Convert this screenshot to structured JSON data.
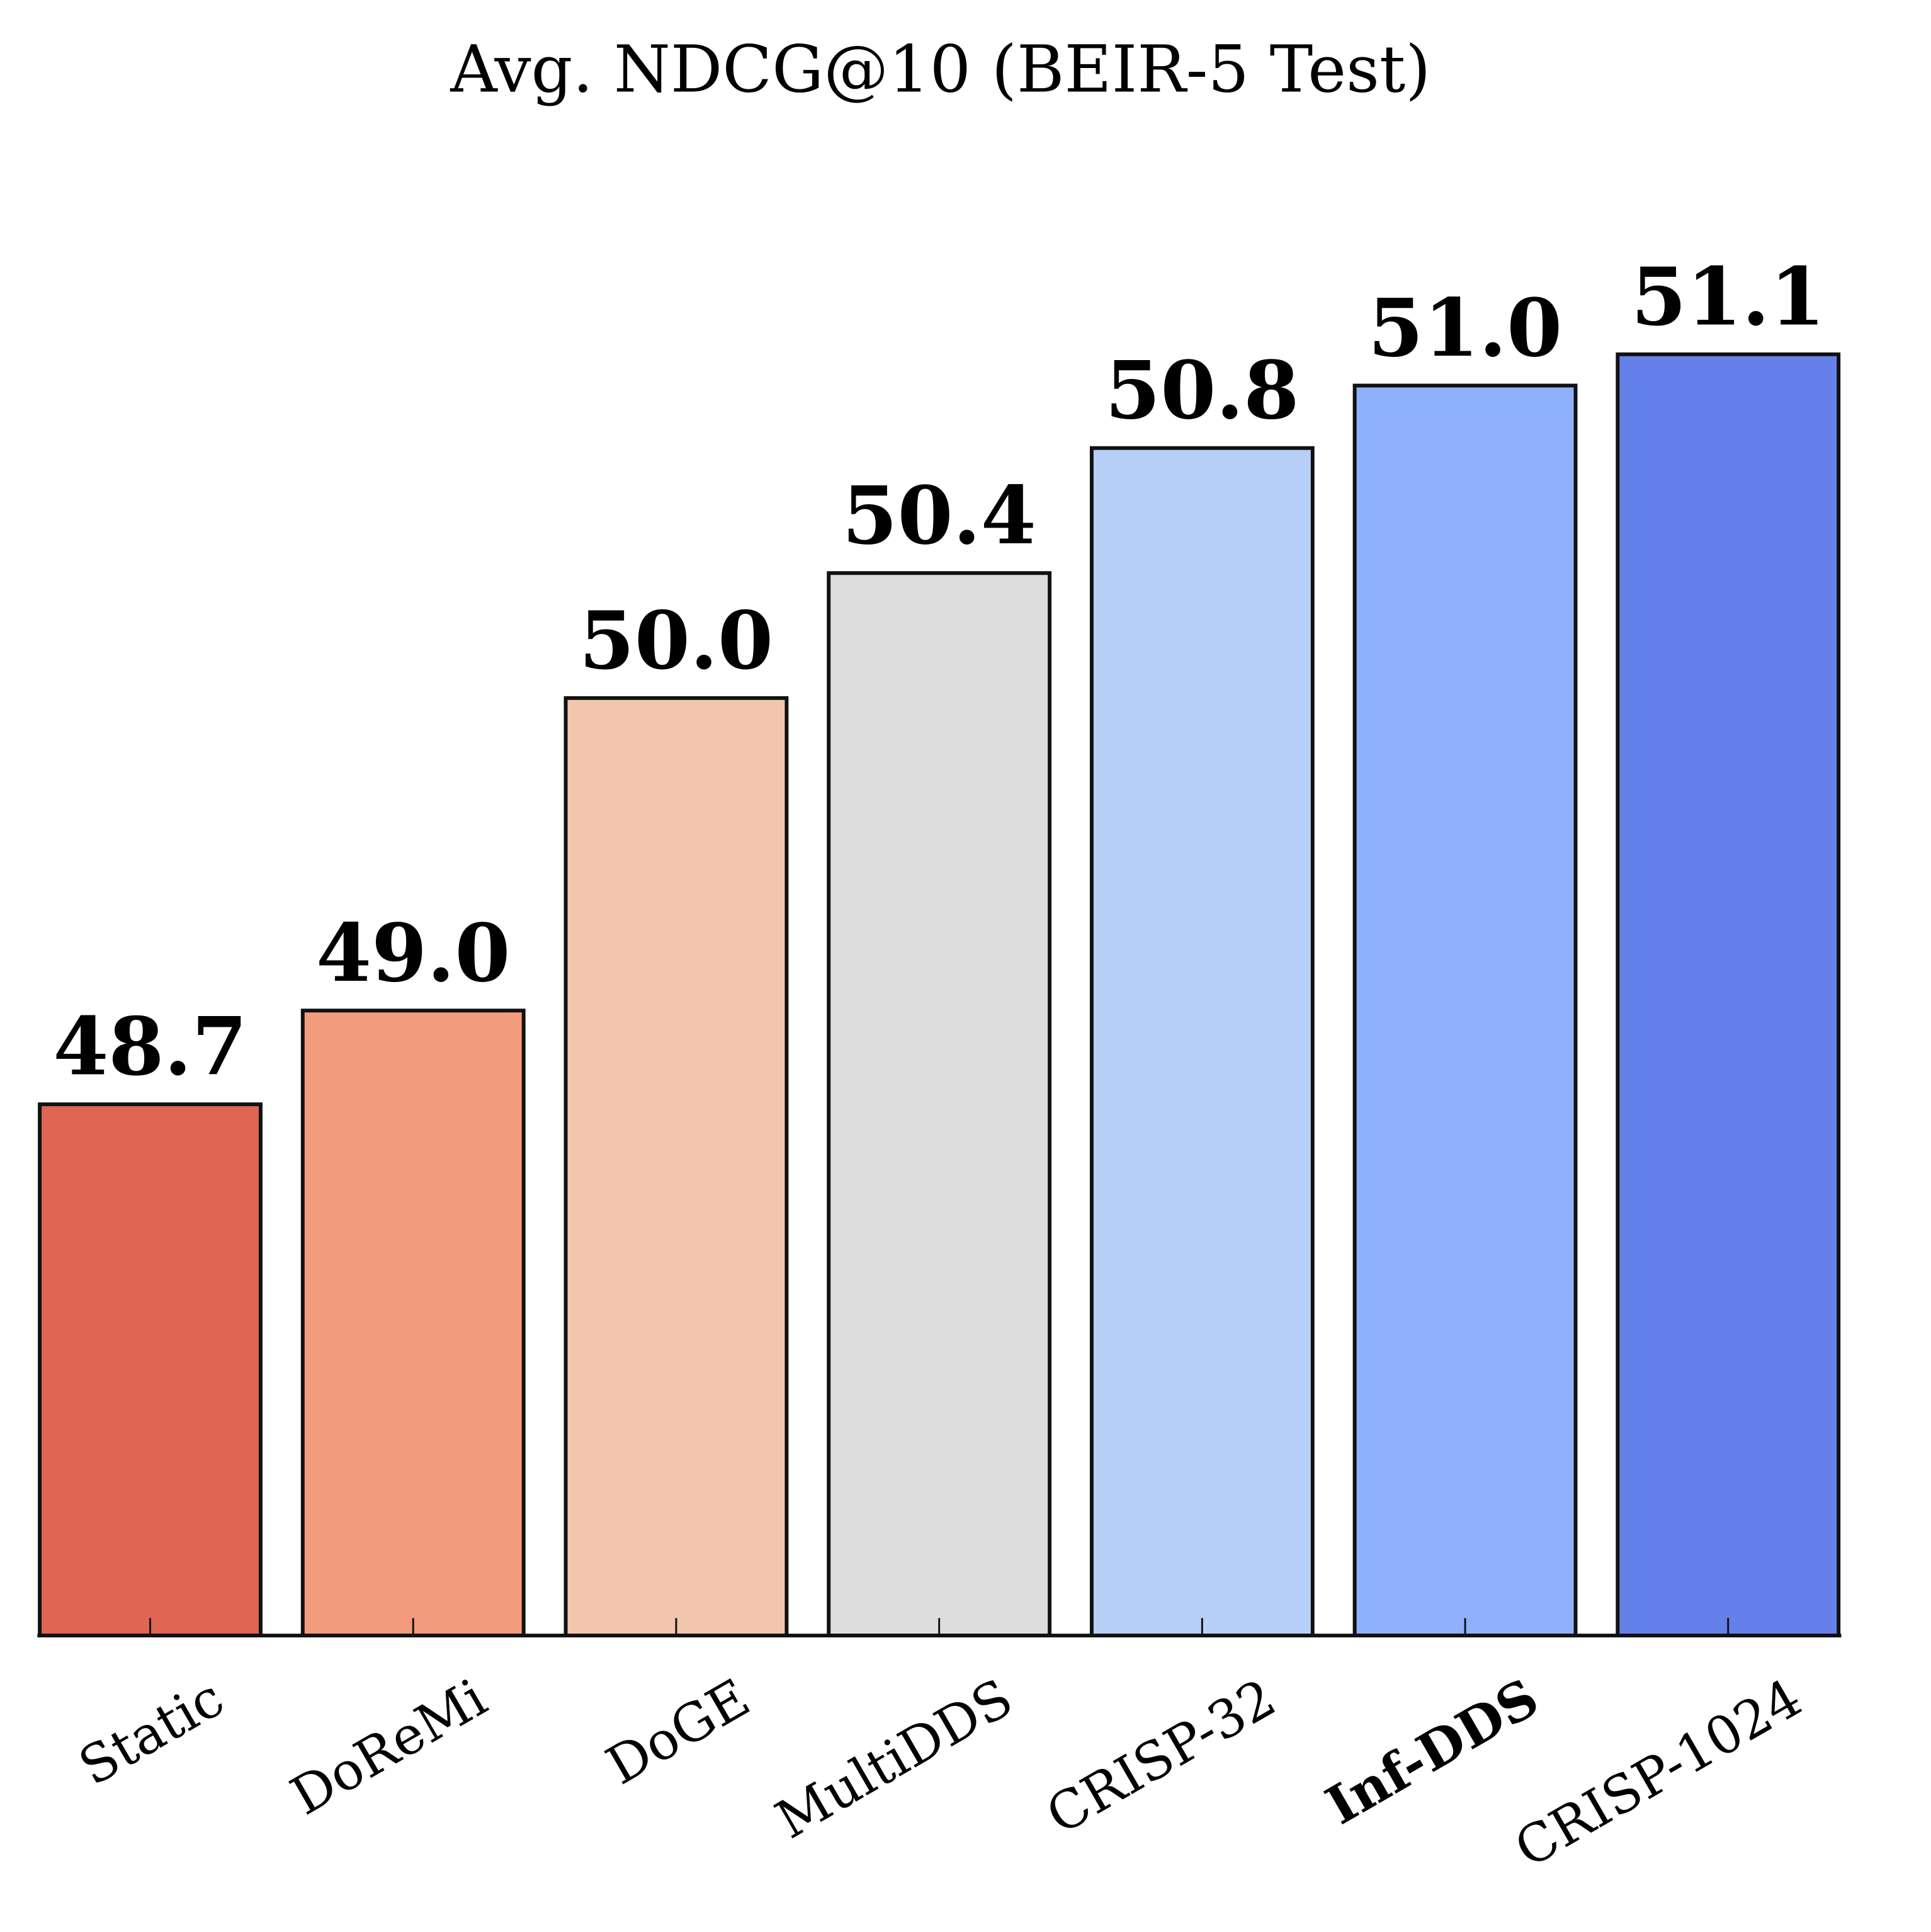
{
  "chart_data": {
    "type": "bar",
    "title": "Avg. NDCG@10 (BEIR-5 Test)",
    "categories": [
      "Static",
      "DoReMi",
      "DoGE",
      "MultiDDS",
      "CRISP-32",
      "Inf-DDS",
      "CRISP-1024"
    ],
    "values": [
      48.7,
      49.0,
      50.0,
      50.4,
      50.8,
      51.0,
      51.1
    ],
    "value_labels": [
      "48.7",
      "49.0",
      "50.0",
      "50.4",
      "50.8",
      "51.0",
      "51.1"
    ],
    "colors": [
      "#e06552",
      "#f29b7d",
      "#f2c6ae",
      "#dcdddc",
      "#b8cff8",
      "#8fb0fb",
      "#6581e9"
    ],
    "highlight_category": "Inf-DDS",
    "ylim": [
      47,
      51.6
    ]
  }
}
